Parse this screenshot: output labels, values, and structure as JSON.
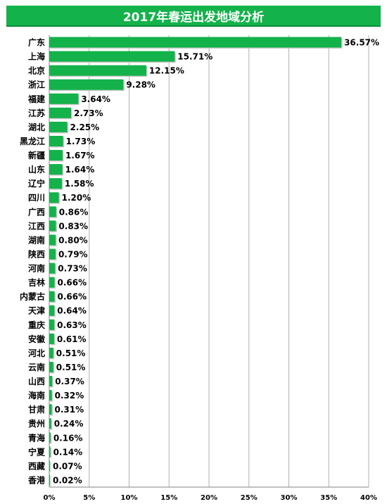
{
  "chart_data": {
    "type": "bar",
    "orientation": "horizontal",
    "title": "2017年春运出发地域分析",
    "categories": [
      "广东",
      "上海",
      "北京",
      "浙江",
      "福建",
      "江苏",
      "湖北",
      "黑龙江",
      "新疆",
      "山东",
      "辽宁",
      "四川",
      "广西",
      "江西",
      "湖南",
      "陕西",
      "河南",
      "吉林",
      "内蒙古",
      "天津",
      "重庆",
      "安徽",
      "河北",
      "云南",
      "山西",
      "海南",
      "甘肃",
      "贵州",
      "青海",
      "宁夏",
      "西藏",
      "香港"
    ],
    "values": [
      36.57,
      15.71,
      12.15,
      9.28,
      3.64,
      2.73,
      2.25,
      1.73,
      1.67,
      1.64,
      1.58,
      1.2,
      0.86,
      0.83,
      0.8,
      0.79,
      0.73,
      0.66,
      0.66,
      0.64,
      0.63,
      0.61,
      0.51,
      0.51,
      0.37,
      0.32,
      0.31,
      0.24,
      0.16,
      0.14,
      0.07,
      0.02
    ],
    "value_labels": [
      "36.57%",
      "15.71%",
      "12.15%",
      "9.28%",
      "3.64%",
      "2.73%",
      "2.25%",
      "1.73%",
      "1.67%",
      "1.64%",
      "1.58%",
      "1.20%",
      "0.86%",
      "0.83%",
      "0.80%",
      "0.79%",
      "0.73%",
      "0.66%",
      "0.66%",
      "0.64%",
      "0.63%",
      "0.61%",
      "0.51%",
      "0.51%",
      "0.37%",
      "0.32%",
      "0.31%",
      "0.24%",
      "0.16%",
      "0.14%",
      "0.07%",
      "0.02%"
    ],
    "x_ticks": [
      "0%",
      "5%",
      "10%",
      "15%",
      "20%",
      "25%",
      "30%",
      "35%",
      "40%"
    ],
    "xlim": [
      0,
      40
    ],
    "grid": true,
    "xlabel": "",
    "ylabel": ""
  },
  "colors": {
    "bar": "#13b24a",
    "title_bg": "#13b24a",
    "grid": "#b0b0b0"
  }
}
